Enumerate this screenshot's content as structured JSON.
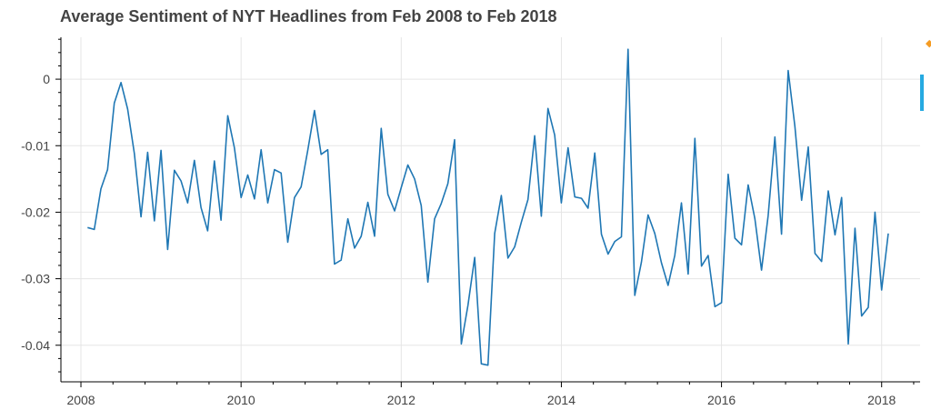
{
  "chart_data": {
    "type": "line",
    "title": "Average Sentiment of NYT Headlines from Feb 2008 to Feb 2018",
    "xlabel": "",
    "ylabel": "",
    "xlim": [
      2007.75,
      2018.48
    ],
    "ylim": [
      -0.0455,
      0.0063
    ],
    "xticks": [
      2008,
      2010,
      2012,
      2014,
      2016,
      2018
    ],
    "xtick_labels": [
      "2008",
      "2010",
      "2012",
      "2014",
      "2016",
      "2018"
    ],
    "yticks": [
      0,
      -0.01,
      -0.02,
      -0.03,
      -0.04
    ],
    "ytick_labels": [
      "0",
      "-0.01",
      "-0.02",
      "-0.03",
      "-0.04"
    ],
    "grid": true,
    "series": [
      {
        "name": "",
        "color": "#1f77b4",
        "x": [
          2008.083,
          2008.167,
          2008.25,
          2008.333,
          2008.417,
          2008.5,
          2008.583,
          2008.667,
          2008.75,
          2008.833,
          2008.917,
          2009.0,
          2009.083,
          2009.167,
          2009.25,
          2009.333,
          2009.417,
          2009.5,
          2009.583,
          2009.667,
          2009.75,
          2009.833,
          2009.917,
          2010.0,
          2010.083,
          2010.167,
          2010.25,
          2010.333,
          2010.417,
          2010.5,
          2010.583,
          2010.667,
          2010.75,
          2010.833,
          2010.917,
          2011.0,
          2011.083,
          2011.167,
          2011.25,
          2011.333,
          2011.417,
          2011.5,
          2011.583,
          2011.667,
          2011.75,
          2011.833,
          2011.917,
          2012.0,
          2012.083,
          2012.167,
          2012.25,
          2012.333,
          2012.417,
          2012.5,
          2012.583,
          2012.667,
          2012.75,
          2012.833,
          2012.917,
          2013.0,
          2013.083,
          2013.167,
          2013.25,
          2013.333,
          2013.417,
          2013.5,
          2013.583,
          2013.667,
          2013.75,
          2013.833,
          2013.917,
          2014.0,
          2014.083,
          2014.167,
          2014.25,
          2014.333,
          2014.417,
          2014.5,
          2014.583,
          2014.667,
          2014.75,
          2014.833,
          2014.917,
          2015.0,
          2015.083,
          2015.167,
          2015.25,
          2015.333,
          2015.417,
          2015.5,
          2015.583,
          2015.667,
          2015.75,
          2015.833,
          2015.917,
          2016.0,
          2016.083,
          2016.167,
          2016.25,
          2016.333,
          2016.417,
          2016.5,
          2016.583,
          2016.667,
          2016.75,
          2016.833,
          2016.917,
          2017.0,
          2017.083,
          2017.167,
          2017.25,
          2017.333,
          2017.417,
          2017.5,
          2017.583,
          2017.667,
          2017.75,
          2017.833,
          2017.917,
          2018.0,
          2018.083
        ],
        "y": [
          -0.0223,
          -0.0226,
          -0.0165,
          -0.0136,
          -0.0036,
          -0.0005,
          -0.0045,
          -0.0112,
          -0.0207,
          -0.011,
          -0.0213,
          -0.0107,
          -0.0256,
          -0.0137,
          -0.0153,
          -0.0186,
          -0.0122,
          -0.0193,
          -0.0228,
          -0.0123,
          -0.0212,
          -0.0055,
          -0.0103,
          -0.0178,
          -0.0144,
          -0.018,
          -0.0106,
          -0.0186,
          -0.0136,
          -0.0141,
          -0.0245,
          -0.0178,
          -0.0162,
          -0.0107,
          -0.0047,
          -0.0113,
          -0.0106,
          -0.0278,
          -0.0272,
          -0.021,
          -0.0254,
          -0.0236,
          -0.0185,
          -0.0236,
          -0.0074,
          -0.0173,
          -0.0198,
          -0.0163,
          -0.0129,
          -0.015,
          -0.019,
          -0.0305,
          -0.021,
          -0.0187,
          -0.0157,
          -0.0091,
          -0.0398,
          -0.034,
          -0.0268,
          -0.0428,
          -0.043,
          -0.0232,
          -0.0175,
          -0.0269,
          -0.0252,
          -0.0215,
          -0.0181,
          -0.0085,
          -0.0206,
          -0.0044,
          -0.0084,
          -0.0186,
          -0.0103,
          -0.0177,
          -0.0179,
          -0.0194,
          -0.0111,
          -0.0233,
          -0.0263,
          -0.0244,
          -0.0237,
          0.0045,
          -0.0325,
          -0.0275,
          -0.0204,
          -0.0232,
          -0.0276,
          -0.031,
          -0.0265,
          -0.0186,
          -0.0293,
          -0.0089,
          -0.0281,
          -0.0265,
          -0.0342,
          -0.0336,
          -0.0143,
          -0.0239,
          -0.0249,
          -0.0159,
          -0.021,
          -0.0287,
          -0.0205,
          -0.0087,
          -0.0233,
          0.0013,
          -0.0071,
          -0.0182,
          -0.0102,
          -0.0262,
          -0.0274,
          -0.0168,
          -0.0234,
          -0.0178,
          -0.0398,
          -0.0224,
          -0.0356,
          -0.0343,
          -0.02,
          -0.0317,
          -0.0232
        ]
      }
    ]
  }
}
